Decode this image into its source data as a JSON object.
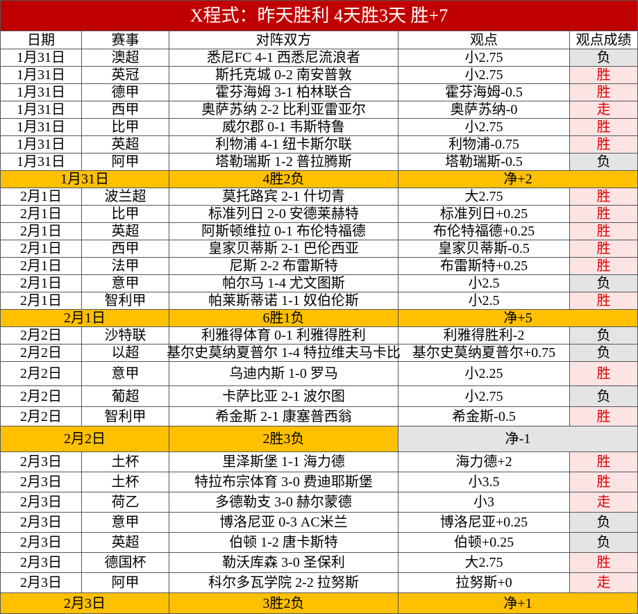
{
  "title": "X程式：昨天胜利 4天胜3天 胜+7",
  "header": [
    "日期",
    "赛事",
    "对阵双方",
    "观点",
    "观点成绩"
  ],
  "result_styles": {
    "胜": {
      "bg": "#fde4e4",
      "color": "#e00000"
    },
    "负": {
      "bg": "#e4e4e4",
      "color": "#000000"
    },
    "走": {
      "bg": "#fde4e4",
      "color": "#e00000"
    }
  },
  "groups": [
    {
      "rows": [
        [
          "1月31日",
          "澳超",
          "悉尼FC 4-1 西悉尼流浪者",
          "小2.75",
          "负"
        ],
        [
          "1月31日",
          "英冠",
          "斯托克城 0-2 南安普敦",
          "小2.75",
          "胜"
        ],
        [
          "1月31日",
          "德甲",
          "霍芬海姆 3-1 柏林联合",
          "霍芬海姆-0.5",
          "胜"
        ],
        [
          "1月31日",
          "西甲",
          "奥萨苏纳 2-2 比利亚雷亚尔",
          "奥萨苏纳-0",
          "走"
        ],
        [
          "1月31日",
          "比甲",
          "威尔郡 0-1 韦斯特鲁",
          "小2.75",
          "胜"
        ],
        [
          "1月31日",
          "英超",
          "利物浦 4-1 纽卡斯尔联",
          "利物浦-0.75",
          "胜"
        ],
        [
          "1月31日",
          "阿甲",
          "塔勒瑞斯 1-2 普拉腾斯",
          "塔勒瑞斯-0.5",
          "负"
        ]
      ],
      "summary": {
        "date": "1月31日",
        "record": "4胜2负",
        "net": "净+2",
        "net_bg": "#ffc000"
      }
    },
    {
      "rows": [
        [
          "2月1日",
          "波兰超",
          "莫托路宾 2-1 什切青",
          "大2.75",
          "胜"
        ],
        [
          "2月1日",
          "比甲",
          "标准列日 2-0 安德莱赫特",
          "标准列日+0.25",
          "胜"
        ],
        [
          "2月1日",
          "英超",
          "阿斯顿维拉 0-1 布伦特福德",
          "布伦特福德+0.25",
          "胜"
        ],
        [
          "2月1日",
          "西甲",
          "皇家贝蒂斯 2-1 巴伦西亚",
          "皇家贝蒂斯-0.5",
          "胜"
        ],
        [
          "2月1日",
          "法甲",
          "尼斯 2-2 布雷斯特",
          "布雷斯特+0.25",
          "胜"
        ],
        [
          "2月1日",
          "意甲",
          "帕尔马 1-4 尤文图斯",
          "小2.5",
          "负"
        ],
        [
          "2月1日",
          "智利甲",
          "帕莱斯蒂诺 1-1 奴伯伦斯",
          "小2.5",
          "胜"
        ]
      ],
      "summary": {
        "date": "2月1日",
        "record": "6胜1负",
        "net": "净+5",
        "net_bg": "#ffc000"
      }
    },
    {
      "rows": [
        [
          "2月2日",
          "沙特联",
          "利雅得体育 0-1 利雅得胜利",
          "利雅得胜利-2",
          "负"
        ],
        [
          "2月2日",
          "以超",
          "基尔史莫纳夏普尔 1-4 特拉维夫马卡比",
          "基尔史莫纳夏普尔+0.75",
          "负"
        ],
        [
          "2月2日",
          "意甲",
          "乌迪内斯 1-0 罗马",
          "小2.25",
          "胜"
        ],
        [
          "2月2日",
          "葡超",
          "卡萨比亚 2-1 波尔图",
          "小2.75",
          "负"
        ],
        [
          "2月2日",
          "智利甲",
          "希金斯 2-1 康塞普西翁",
          "希金斯-0.5",
          "胜"
        ]
      ],
      "summary": {
        "date": "2月2日",
        "record": "2胜3负",
        "net": "净-1",
        "net_bg": "#e4e4e4"
      }
    },
    {
      "rows": [
        [
          "2月3日",
          "土杯",
          "里泽斯堡 1-1 海力德",
          "海力德+2",
          "胜"
        ],
        [
          "2月3日",
          "土杯",
          "特拉布宗体育 3-0 费迪耶斯堡",
          "小3.5",
          "胜"
        ],
        [
          "2月3日",
          "荷乙",
          "多德勒支 3-0 赫尔蒙德",
          "小3",
          "走"
        ],
        [
          "2月3日",
          "意甲",
          "博洛尼亚 0-3 AC米兰",
          "博洛尼亚+0.25",
          "负"
        ],
        [
          "2月3日",
          "英超",
          "伯顿 1-2 唐卡斯特",
          "伯顿+0.25",
          "负"
        ],
        [
          "2月3日",
          "德国杯",
          "勒沃库森 3-0 圣保利",
          "大2.75",
          "胜"
        ],
        [
          "2月3日",
          "阿甲",
          "科尔多瓦学院 2-2 拉努斯",
          "拉努斯+0",
          "走"
        ]
      ],
      "summary": {
        "date": "2月3日",
        "record": "3胜2负",
        "net": "净+1",
        "net_bg": "#ffc000"
      }
    }
  ]
}
